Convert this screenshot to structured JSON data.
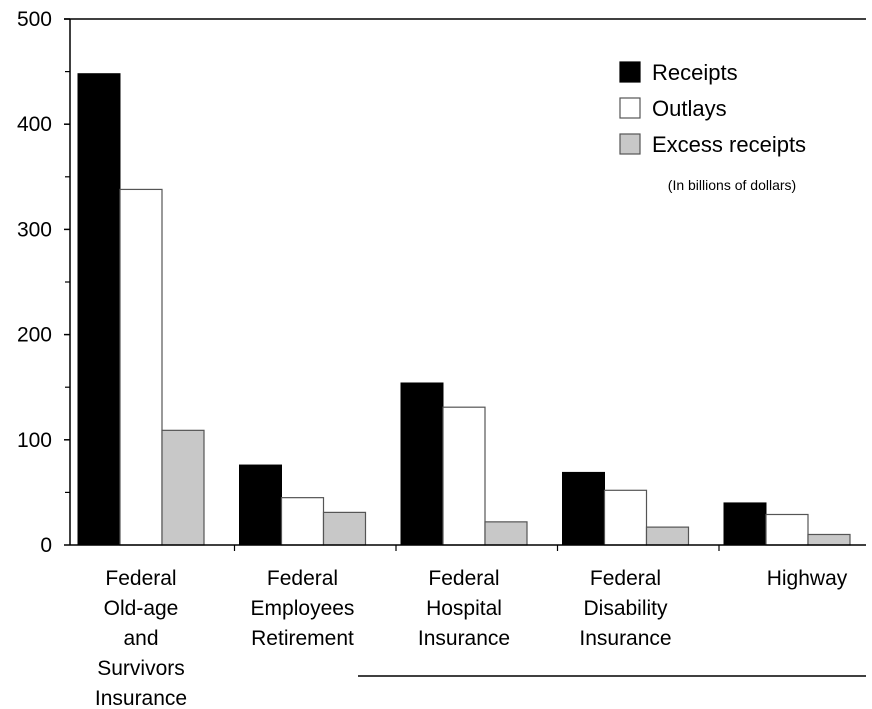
{
  "chart_data": {
    "type": "bar",
    "categories": [
      [
        "Federal",
        "Old-age",
        "and",
        "Survivors",
        "Insurance"
      ],
      [
        "Federal",
        "Employees",
        "Retirement"
      ],
      [
        "Federal",
        "Hospital",
        "Insurance"
      ],
      [
        "Federal",
        "Disability",
        "Insurance"
      ],
      [
        "Highway"
      ]
    ],
    "series": [
      {
        "name": "Receipts",
        "values": [
          448,
          76,
          154,
          69,
          40
        ],
        "color": "#000000"
      },
      {
        "name": "Outlays",
        "values": [
          338,
          45,
          131,
          52,
          29
        ],
        "color": "#ffffff"
      },
      {
        "name": "Excess receipts",
        "values": [
          109,
          31,
          22,
          17,
          10
        ],
        "color": "#c8c8c8"
      }
    ],
    "ylim": [
      0,
      500
    ],
    "yticks": [
      0,
      100,
      200,
      300,
      400,
      500
    ],
    "ytick_labels": [
      "0",
      "100",
      "200",
      "300",
      "400",
      "500"
    ],
    "legend_position": "top-right",
    "note": "(In billions of dollars)",
    "grid": false
  }
}
